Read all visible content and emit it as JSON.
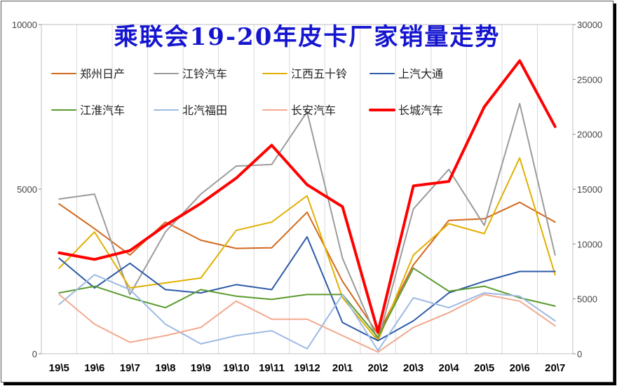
{
  "chart_data": {
    "type": "line",
    "title": "乘联会19-20年皮卡厂家销量走势",
    "categories": [
      "19\\5",
      "19\\6",
      "19\\7",
      "19\\8",
      "19\\9",
      "19\\10",
      "19\\11",
      "19\\12",
      "20\\1",
      "20\\2",
      "20\\3",
      "20\\4",
      "20\\5",
      "20\\6",
      "20\\7"
    ],
    "left_axis": {
      "ylim": [
        0,
        10000
      ],
      "ticks": [
        "0",
        "5000",
        "10000"
      ]
    },
    "right_axis": {
      "ylim": [
        0,
        30000
      ],
      "ticks": [
        "0",
        "5000",
        "10000",
        "15000",
        "20000",
        "25000",
        "30000"
      ]
    },
    "grid": "vertical",
    "legend_position": "top",
    "series": [
      {
        "name": "郑州日产",
        "axis": "left",
        "color": "#d2691e",
        "width": 2,
        "values": [
          4550,
          3800,
          3000,
          4000,
          3450,
          3200,
          3220,
          4300,
          2200,
          600,
          2700,
          4050,
          4100,
          4600,
          4000
        ]
      },
      {
        "name": "江铃汽车",
        "axis": "left",
        "color": "#9b9b9b",
        "width": 2,
        "values": [
          4700,
          4850,
          1800,
          3700,
          4850,
          5700,
          5750,
          7350,
          2900,
          400,
          4400,
          5600,
          3900,
          7600,
          3000
        ]
      },
      {
        "name": "江西五十铃",
        "axis": "left",
        "color": "#e0b000",
        "width": 2,
        "values": [
          2600,
          3700,
          2000,
          2150,
          2300,
          3750,
          4000,
          4800,
          1700,
          400,
          3000,
          3950,
          3650,
          5950,
          2400
        ]
      },
      {
        "name": "上汽大通",
        "axis": "left",
        "color": "#2e5aa8",
        "width": 2,
        "values": [
          2900,
          2000,
          2750,
          1950,
          1850,
          2100,
          1950,
          3550,
          950,
          400,
          1000,
          1850,
          2200,
          2500,
          2500
        ]
      },
      {
        "name": "江淮汽车",
        "axis": "left",
        "color": "#5b9a30",
        "width": 2,
        "values": [
          1850,
          2050,
          1700,
          1400,
          1950,
          1750,
          1650,
          1800,
          1800,
          500,
          2600,
          1900,
          2050,
          1700,
          1450
        ]
      },
      {
        "name": "北汽福田",
        "axis": "left",
        "color": "#9dbbe3",
        "width": 2,
        "values": [
          1500,
          2400,
          1950,
          900,
          300,
          550,
          700,
          150,
          1800,
          100,
          1700,
          1400,
          1850,
          1750,
          1000
        ]
      },
      {
        "name": "长安汽车",
        "axis": "left",
        "color": "#f2a98e",
        "width": 2,
        "values": [
          1800,
          900,
          350,
          550,
          800,
          1600,
          1050,
          1050,
          550,
          50,
          800,
          1250,
          1800,
          1600,
          850
        ]
      },
      {
        "name": "长城汽车",
        "axis": "right",
        "color": "#ff0000",
        "width": 4,
        "values": [
          9200,
          8600,
          9400,
          11700,
          13700,
          16000,
          19000,
          15400,
          13400,
          2000,
          15300,
          15700,
          22500,
          26700,
          20700
        ]
      }
    ]
  }
}
